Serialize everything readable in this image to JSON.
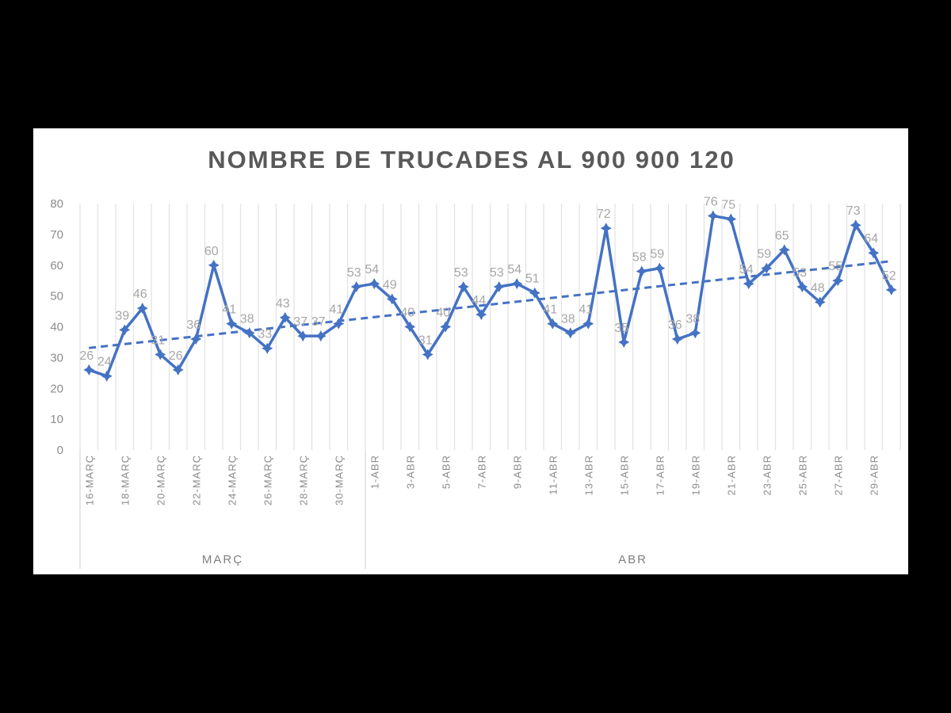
{
  "chart_data": {
    "type": "line",
    "title": "NOMBRE DE TRUCADES AL 900 900 120",
    "xlabel": "",
    "ylabel": "",
    "ylim": [
      0,
      80
    ],
    "yticks": [
      0,
      10,
      20,
      30,
      40,
      50,
      60,
      70,
      80
    ],
    "grid": "vertical",
    "legend": "none",
    "line_color": "#4472c4",
    "trend_color": "#4472c4",
    "categories": [
      "16-MARÇ",
      "17-MARÇ",
      "18-MARÇ",
      "19-MARÇ",
      "20-MARÇ",
      "21-MARÇ",
      "22-MARÇ",
      "23-MARÇ",
      "24-MARÇ",
      "25-MARÇ",
      "26-MARÇ",
      "27-MARÇ",
      "28-MARÇ",
      "29-MARÇ",
      "30-MARÇ",
      "31-MARÇ",
      "1-ABR",
      "2-ABR",
      "3-ABR",
      "4-ABR",
      "5-ABR",
      "6-ABR",
      "7-ABR",
      "8-ABR",
      "9-ABR",
      "10-ABR",
      "11-ABR",
      "12-ABR",
      "13-ABR",
      "14-ABR",
      "15-ABR",
      "16-ABR",
      "17-ABR",
      "18-ABR",
      "19-ABR",
      "20-ABR",
      "21-ABR",
      "22-ABR",
      "23-ABR",
      "24-ABR",
      "25-ABR",
      "26-ABR",
      "27-ABR",
      "28-ABR",
      "29-ABR",
      "30-ABR"
    ],
    "visible_tick_labels": [
      "16-MARÇ",
      "18-MARÇ",
      "20-MARÇ",
      "22-MARÇ",
      "24-MARÇ",
      "26-MARÇ",
      "28-MARÇ",
      "30-MARÇ",
      "1-ABR",
      "3-ABR",
      "5-ABR",
      "7-ABR",
      "9-ABR",
      "11-ABR",
      "13-ABR",
      "15-ABR",
      "17-ABR",
      "19-ABR",
      "21-ABR",
      "23-ABR",
      "25-ABR",
      "27-ABR",
      "29-ABR"
    ],
    "groups": [
      {
        "name": "MARÇ",
        "count": 16
      },
      {
        "name": "ABR",
        "count": 30
      }
    ],
    "values": [
      26,
      24,
      39,
      46,
      31,
      26,
      36,
      60,
      41,
      38,
      33,
      43,
      37,
      37,
      41,
      53,
      54,
      49,
      40,
      31,
      40,
      53,
      44,
      53,
      54,
      51,
      41,
      38,
      41,
      72,
      35,
      58,
      59,
      36,
      38,
      76,
      75,
      54,
      59,
      65,
      53,
      48,
      55,
      73,
      64,
      52
    ],
    "data_labels": [
      "26",
      "24",
      "39",
      "46",
      "31",
      "26",
      "36",
      "60",
      "41",
      "38",
      "33",
      "43",
      "37",
      "37",
      "41",
      "53",
      "54",
      "49",
      "40",
      "31",
      "40",
      "53",
      "44",
      "53",
      "54",
      "51",
      "41",
      "38",
      "41",
      "72",
      "35",
      "58",
      "59",
      "36",
      "38",
      "76",
      "75",
      "54",
      "59",
      "65",
      "53",
      "48",
      "55",
      "73",
      "64",
      "52"
    ],
    "trendline": {
      "type": "linear",
      "style": "dashed"
    }
  }
}
